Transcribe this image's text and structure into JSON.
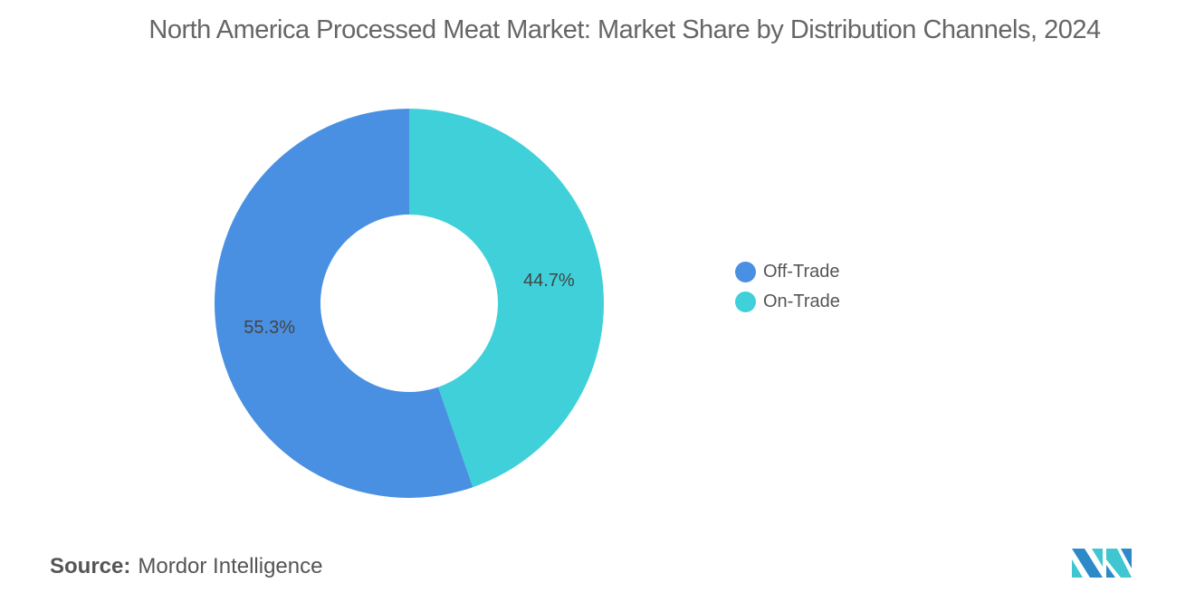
{
  "chart_data": {
    "type": "pie",
    "donut": true,
    "title": "North America Processed Meat Market: Market Share by Distribution Channels, 2024",
    "categories": [
      "Off-Trade",
      "On-Trade"
    ],
    "values": [
      55.3,
      44.7
    ],
    "labels": [
      "55.3%",
      "44.7%"
    ],
    "colors": [
      "#4a90e2",
      "#3fd0d9"
    ],
    "legend_position": "right"
  },
  "source": {
    "label": "Source:",
    "value": "Mordor Intelligence"
  },
  "logo": {
    "text": "Mordor Intelligence"
  }
}
